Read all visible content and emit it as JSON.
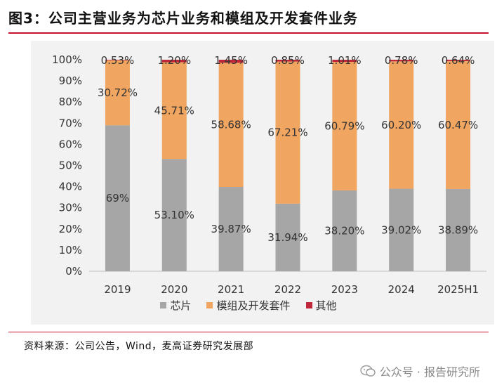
{
  "figure": {
    "title": "图3：公司主营业务为芯片业务和模组及开发套件业务",
    "source": "资料来源：公司公告，Wind，麦高证券研究发展部",
    "watermark": "公众号 · 报告研究所"
  },
  "colors": {
    "chip": "#a6a6a6",
    "module": "#f0a560",
    "other": "#c0283a",
    "title_rule": "#c4122f"
  },
  "chart_data": {
    "type": "bar",
    "stacked": true,
    "percent": true,
    "categories": [
      "2019",
      "2020",
      "2021",
      "2022",
      "2023",
      "2024",
      "2025H1"
    ],
    "series": [
      {
        "name": "芯片",
        "values": [
          69,
          53.1,
          39.87,
          31.94,
          38.2,
          39.02,
          38.89
        ],
        "labels": [
          "69%",
          "53.10%",
          "39.87%",
          "31.94%",
          "38.20%",
          "39.02%",
          "38.89%"
        ]
      },
      {
        "name": "模组及开发套件",
        "values": [
          30.72,
          45.71,
          58.68,
          67.21,
          60.79,
          60.2,
          60.47
        ],
        "labels": [
          "30.72%",
          "45.71%",
          "58.68%",
          "67.21%",
          "60.79%",
          "60.20%",
          "60.47%"
        ]
      },
      {
        "name": "其他",
        "values": [
          0.53,
          1.2,
          1.45,
          0.85,
          1.01,
          0.78,
          0.64
        ],
        "labels": [
          "0.53%",
          "1.20%",
          "1.45%",
          "0.85%",
          "1.01%",
          "0.78%",
          "0.64%"
        ]
      }
    ],
    "ylim": [
      0,
      100
    ],
    "yticks": [
      "0%",
      "10%",
      "20%",
      "30%",
      "40%",
      "50%",
      "60%",
      "70%",
      "80%",
      "90%",
      "100%"
    ],
    "legend_position": "bottom",
    "grid": false
  }
}
